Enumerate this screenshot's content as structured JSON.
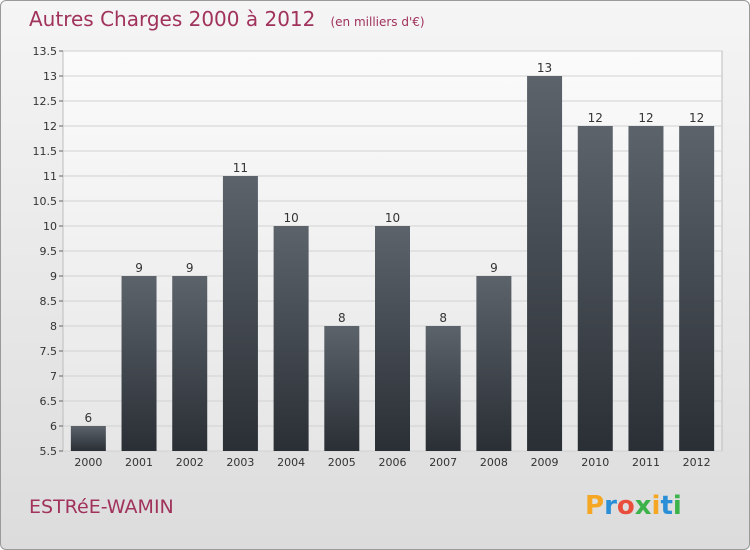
{
  "title": "Autres Charges 2000 à 2012",
  "subtitle": "(en milliers d'€)",
  "commune": "ESTRéE-WAMIN",
  "logo": {
    "letters": [
      "P",
      "r",
      "o",
      "x",
      "i",
      "t",
      "i"
    ],
    "colors": [
      "#f5a623",
      "#2a8fd6",
      "#e94e3c",
      "#3bb34a",
      "#f5a623",
      "#2a8fd6",
      "#3bb34a"
    ]
  },
  "chart_data": {
    "type": "bar",
    "categories": [
      "2000",
      "2001",
      "2002",
      "2003",
      "2004",
      "2005",
      "2006",
      "2007",
      "2008",
      "2009",
      "2010",
      "2011",
      "2012"
    ],
    "values": [
      6,
      9,
      9,
      11,
      10,
      8,
      10,
      8,
      9,
      13,
      12,
      12,
      12
    ],
    "ylim": [
      5.5,
      13.5
    ],
    "yticks": [
      "5.5",
      "6",
      "6.5",
      "7",
      "7.5",
      "8",
      "8.5",
      "9",
      "9.5",
      "10",
      "10.5",
      "11",
      "11.5",
      "12",
      "12.5",
      "13",
      "13.5"
    ],
    "grid": true,
    "bar_color": "#4a5058"
  }
}
